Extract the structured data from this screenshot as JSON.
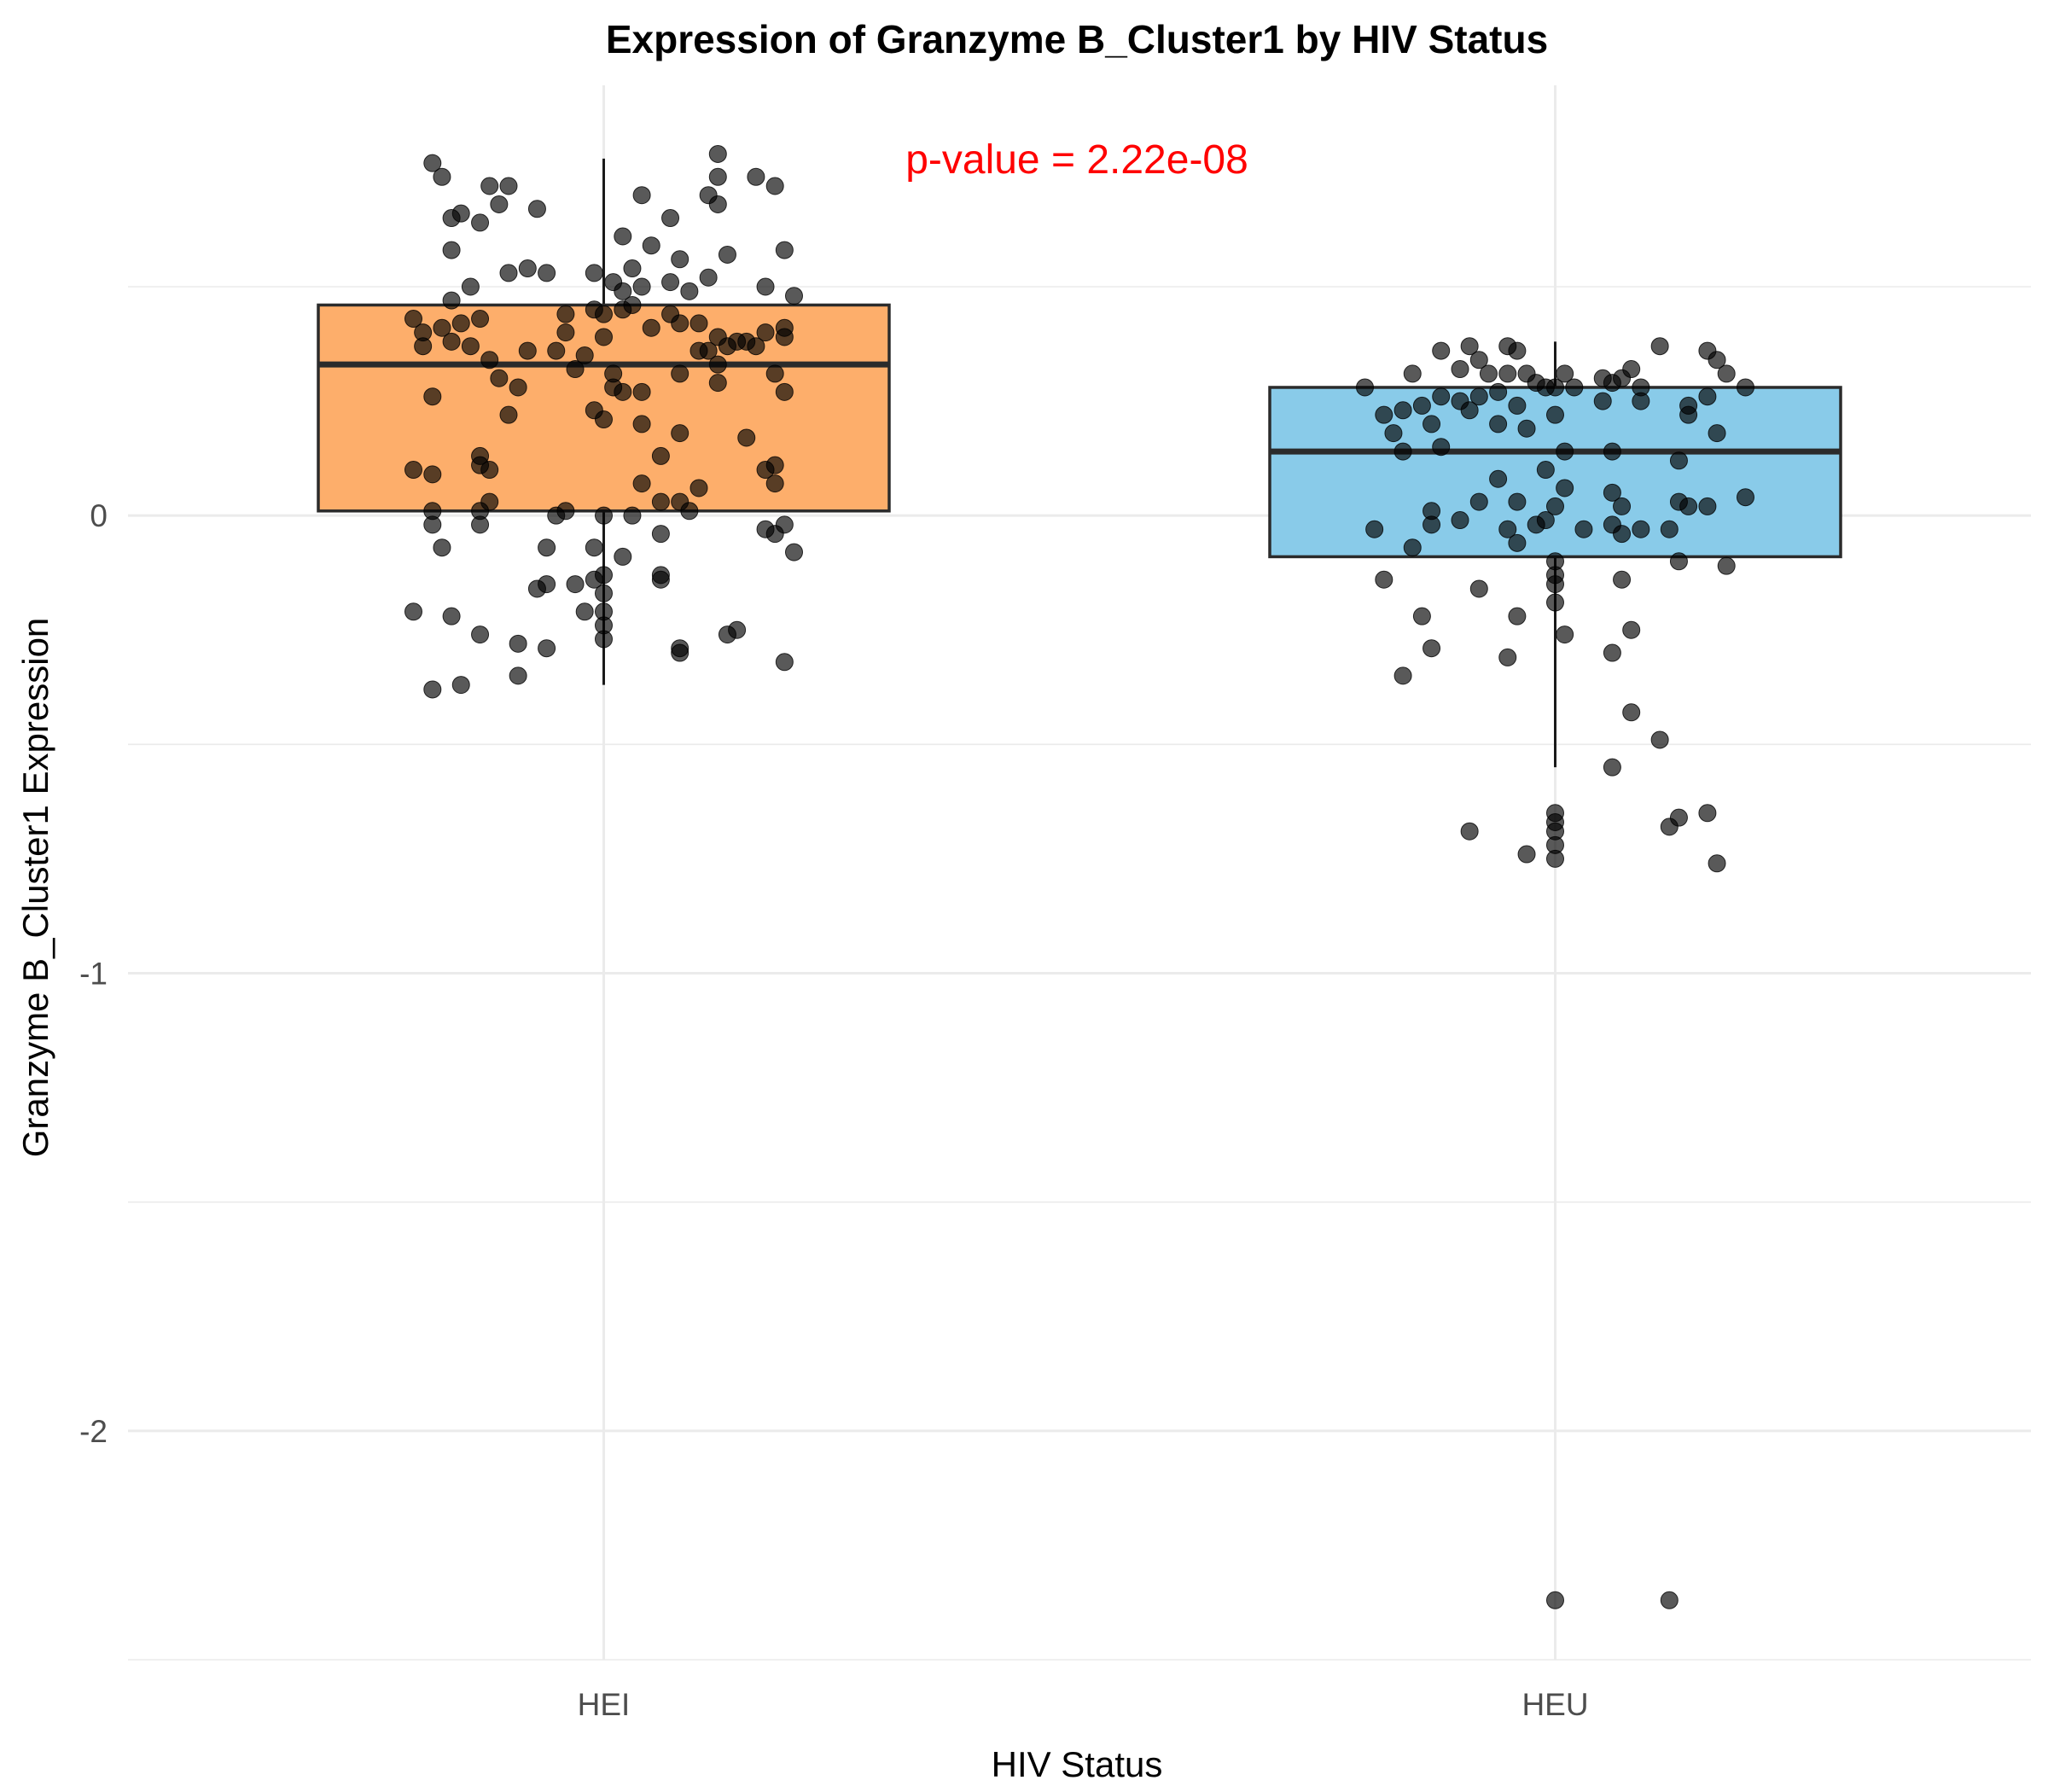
{
  "chart_data": {
    "type": "box",
    "title": "Expression of Granzyme B_Cluster1 by HIV Status",
    "xlabel": "HIV Status",
    "ylabel": "Granzyme B_Cluster1 Expression",
    "ylim": [
      -2.5,
      0.94
    ],
    "y_ticks": [
      0,
      -1,
      -2
    ],
    "y_tick_labels": [
      "0",
      "-1",
      "-2"
    ],
    "grid": true,
    "legend": "none",
    "categories": [
      "HEI",
      "HEU"
    ],
    "annotation": {
      "text": "p-value = 2.22e-08",
      "color": "#ff0000"
    },
    "point_color": "#000000",
    "groups": [
      {
        "name": "HEI",
        "color": "#fdae6b",
        "box": {
          "q1": 0.01,
          "median": 0.33,
          "q3": 0.46,
          "whisker_low": -0.37,
          "whisker_high": 0.78
        },
        "points": [
          {
            "x": -0.18,
            "y": 0.77
          },
          {
            "x": -0.17,
            "y": 0.74
          },
          {
            "x": -0.12,
            "y": 0.72
          },
          {
            "x": -0.1,
            "y": 0.72
          },
          {
            "x": -0.16,
            "y": 0.65
          },
          {
            "x": -0.15,
            "y": 0.66
          },
          {
            "x": -0.11,
            "y": 0.68
          },
          {
            "x": -0.07,
            "y": 0.67
          },
          {
            "x": -0.13,
            "y": 0.64
          },
          {
            "x": -0.16,
            "y": 0.58
          },
          {
            "x": -0.14,
            "y": 0.5
          },
          {
            "x": -0.1,
            "y": 0.53
          },
          {
            "x": -0.08,
            "y": 0.54
          },
          {
            "x": -0.06,
            "y": 0.53
          },
          {
            "x": -0.16,
            "y": 0.47
          },
          {
            "x": -0.2,
            "y": 0.43
          },
          {
            "x": -0.19,
            "y": 0.4
          },
          {
            "x": -0.17,
            "y": 0.41
          },
          {
            "x": -0.15,
            "y": 0.42
          },
          {
            "x": -0.13,
            "y": 0.43
          },
          {
            "x": -0.19,
            "y": 0.37
          },
          {
            "x": -0.16,
            "y": 0.38
          },
          {
            "x": -0.18,
            "y": 0.26
          },
          {
            "x": -0.14,
            "y": 0.37
          },
          {
            "x": -0.12,
            "y": 0.34
          },
          {
            "x": -0.11,
            "y": 0.3
          },
          {
            "x": -0.09,
            "y": 0.28
          },
          {
            "x": -0.08,
            "y": 0.36
          },
          {
            "x": -0.1,
            "y": 0.22
          },
          {
            "x": -0.04,
            "y": 0.44
          },
          {
            "x": -0.04,
            "y": 0.4
          },
          {
            "x": -0.05,
            "y": 0.36
          },
          {
            "x": -0.02,
            "y": 0.35
          },
          {
            "x": -0.01,
            "y": 0.45
          },
          {
            "x": -0.03,
            "y": 0.32
          },
          {
            "x": -0.2,
            "y": 0.1
          },
          {
            "x": -0.18,
            "y": 0.09
          },
          {
            "x": -0.13,
            "y": 0.13
          },
          {
            "x": -0.13,
            "y": 0.11
          },
          {
            "x": -0.12,
            "y": 0.1
          },
          {
            "x": -0.18,
            "y": 0.01
          },
          {
            "x": -0.13,
            "y": 0.01
          },
          {
            "x": -0.12,
            "y": 0.03
          },
          {
            "x": -0.04,
            "y": 0.01
          },
          {
            "x": -0.05,
            "y": 0.0
          },
          {
            "x": -0.18,
            "y": -0.02
          },
          {
            "x": -0.17,
            "y": -0.07
          },
          {
            "x": -0.13,
            "y": -0.02
          },
          {
            "x": -0.06,
            "y": -0.07
          },
          {
            "x": -0.06,
            "y": -0.15
          },
          {
            "x": -0.07,
            "y": -0.16
          },
          {
            "x": -0.03,
            "y": -0.15
          },
          {
            "x": -0.02,
            "y": -0.21
          },
          {
            "x": -0.2,
            "y": -0.21
          },
          {
            "x": -0.16,
            "y": -0.22
          },
          {
            "x": -0.13,
            "y": -0.26
          },
          {
            "x": -0.09,
            "y": -0.28
          },
          {
            "x": -0.06,
            "y": -0.29
          },
          {
            "x": -0.09,
            "y": -0.35
          },
          {
            "x": -0.15,
            "y": -0.37
          },
          {
            "x": -0.18,
            "y": -0.38
          },
          {
            "x": -0.01,
            "y": 0.53
          },
          {
            "x": 0.01,
            "y": 0.51
          },
          {
            "x": 0.02,
            "y": 0.49
          },
          {
            "x": 0.0,
            "y": 0.44
          },
          {
            "x": 0.02,
            "y": 0.45
          },
          {
            "x": 0.0,
            "y": 0.39
          },
          {
            "x": 0.03,
            "y": 0.46
          },
          {
            "x": 0.05,
            "y": 0.41
          },
          {
            "x": 0.07,
            "y": 0.44
          },
          {
            "x": 0.08,
            "y": 0.42
          },
          {
            "x": 0.1,
            "y": 0.42
          },
          {
            "x": 0.12,
            "y": 0.39
          },
          {
            "x": 0.13,
            "y": 0.37
          },
          {
            "x": 0.14,
            "y": 0.38
          },
          {
            "x": 0.11,
            "y": 0.36
          },
          {
            "x": 0.1,
            "y": 0.36
          },
          {
            "x": 0.08,
            "y": 0.31
          },
          {
            "x": 0.09,
            "y": 0.49
          },
          {
            "x": 0.11,
            "y": 0.52
          },
          {
            "x": 0.07,
            "y": 0.51
          },
          {
            "x": 0.04,
            "y": 0.5
          },
          {
            "x": 0.03,
            "y": 0.54
          },
          {
            "x": 0.01,
            "y": 0.31
          },
          {
            "x": 0.01,
            "y": 0.28
          },
          {
            "x": 0.02,
            "y": 0.27
          },
          {
            "x": 0.04,
            "y": 0.27
          },
          {
            "x": -0.01,
            "y": 0.23
          },
          {
            "x": 0.0,
            "y": 0.21
          },
          {
            "x": 0.04,
            "y": 0.2
          },
          {
            "x": 0.05,
            "y": 0.59
          },
          {
            "x": 0.02,
            "y": 0.61
          },
          {
            "x": 0.07,
            "y": 0.65
          },
          {
            "x": 0.04,
            "y": 0.7
          },
          {
            "x": 0.08,
            "y": 0.56
          },
          {
            "x": 0.13,
            "y": 0.57
          },
          {
            "x": 0.12,
            "y": 0.68
          },
          {
            "x": 0.11,
            "y": 0.7
          },
          {
            "x": 0.12,
            "y": 0.74
          },
          {
            "x": 0.12,
            "y": 0.79
          },
          {
            "x": 0.16,
            "y": 0.74
          },
          {
            "x": 0.18,
            "y": 0.72
          },
          {
            "x": 0.19,
            "y": 0.58
          },
          {
            "x": 0.17,
            "y": 0.5
          },
          {
            "x": 0.2,
            "y": 0.48
          },
          {
            "x": 0.15,
            "y": 0.38
          },
          {
            "x": 0.17,
            "y": 0.4
          },
          {
            "x": 0.19,
            "y": 0.41
          },
          {
            "x": 0.19,
            "y": 0.39
          },
          {
            "x": 0.16,
            "y": 0.37
          },
          {
            "x": 0.12,
            "y": 0.33
          },
          {
            "x": 0.12,
            "y": 0.29
          },
          {
            "x": 0.18,
            "y": 0.31
          },
          {
            "x": 0.19,
            "y": 0.27
          },
          {
            "x": 0.08,
            "y": 0.18
          },
          {
            "x": 0.06,
            "y": 0.13
          },
          {
            "x": 0.15,
            "y": 0.17
          },
          {
            "x": 0.04,
            "y": 0.07
          },
          {
            "x": 0.06,
            "y": 0.03
          },
          {
            "x": 0.08,
            "y": 0.03
          },
          {
            "x": 0.1,
            "y": 0.06
          },
          {
            "x": 0.17,
            "y": 0.1
          },
          {
            "x": 0.18,
            "y": 0.11
          },
          {
            "x": 0.18,
            "y": 0.07
          },
          {
            "x": 0.09,
            "y": 0.01
          },
          {
            "x": 0.0,
            "y": 0.0
          },
          {
            "x": 0.03,
            "y": 0.0
          },
          {
            "x": -0.01,
            "y": -0.07
          },
          {
            "x": -0.01,
            "y": -0.14
          },
          {
            "x": 0.02,
            "y": -0.09
          },
          {
            "x": 0.06,
            "y": -0.04
          },
          {
            "x": 0.06,
            "y": -0.13
          },
          {
            "x": 0.06,
            "y": -0.14
          },
          {
            "x": 0.0,
            "y": -0.13
          },
          {
            "x": 0.0,
            "y": -0.17
          },
          {
            "x": 0.0,
            "y": -0.21
          },
          {
            "x": 0.0,
            "y": -0.24
          },
          {
            "x": 0.0,
            "y": -0.27
          },
          {
            "x": 0.08,
            "y": -0.29
          },
          {
            "x": 0.08,
            "y": -0.3
          },
          {
            "x": 0.13,
            "y": -0.26
          },
          {
            "x": 0.14,
            "y": -0.25
          },
          {
            "x": 0.17,
            "y": -0.03
          },
          {
            "x": 0.18,
            "y": -0.04
          },
          {
            "x": 0.19,
            "y": -0.02
          },
          {
            "x": 0.2,
            "y": -0.08
          },
          {
            "x": 0.19,
            "y": -0.32
          }
        ]
      },
      {
        "name": "HEU",
        "color": "#89cbe9",
        "box": {
          "q1": -0.09,
          "median": 0.14,
          "q3": 0.28,
          "whisker_low": -0.55,
          "whisker_high": 0.38
        },
        "points": [
          {
            "x": -0.2,
            "y": 0.28
          },
          {
            "x": -0.15,
            "y": 0.31
          },
          {
            "x": -0.12,
            "y": 0.36
          },
          {
            "x": -0.09,
            "y": 0.37
          },
          {
            "x": -0.05,
            "y": 0.37
          },
          {
            "x": -0.04,
            "y": 0.36
          },
          {
            "x": -0.08,
            "y": 0.34
          },
          {
            "x": -0.1,
            "y": 0.32
          },
          {
            "x": -0.07,
            "y": 0.31
          },
          {
            "x": -0.05,
            "y": 0.31
          },
          {
            "x": -0.03,
            "y": 0.31
          },
          {
            "x": -0.02,
            "y": 0.29
          },
          {
            "x": -0.01,
            "y": 0.28
          },
          {
            "x": 0.0,
            "y": 0.28
          },
          {
            "x": 0.01,
            "y": 0.31
          },
          {
            "x": -0.18,
            "y": 0.22
          },
          {
            "x": -0.16,
            "y": 0.23
          },
          {
            "x": -0.14,
            "y": 0.24
          },
          {
            "x": -0.12,
            "y": 0.26
          },
          {
            "x": -0.1,
            "y": 0.25
          },
          {
            "x": -0.08,
            "y": 0.26
          },
          {
            "x": -0.06,
            "y": 0.27
          },
          {
            "x": -0.04,
            "y": 0.24
          },
          {
            "x": -0.03,
            "y": 0.19
          },
          {
            "x": -0.06,
            "y": 0.2
          },
          {
            "x": -0.09,
            "y": 0.23
          },
          {
            "x": -0.13,
            "y": 0.2
          },
          {
            "x": -0.17,
            "y": 0.18
          },
          {
            "x": -0.16,
            "y": 0.14
          },
          {
            "x": -0.12,
            "y": 0.15
          },
          {
            "x": 0.0,
            "y": 0.22
          },
          {
            "x": 0.02,
            "y": 0.28
          },
          {
            "x": 0.05,
            "y": 0.3
          },
          {
            "x": 0.07,
            "y": 0.3
          },
          {
            "x": 0.08,
            "y": 0.32
          },
          {
            "x": 0.06,
            "y": 0.29
          },
          {
            "x": 0.09,
            "y": 0.28
          },
          {
            "x": 0.11,
            "y": 0.37
          },
          {
            "x": 0.16,
            "y": 0.36
          },
          {
            "x": 0.17,
            "y": 0.34
          },
          {
            "x": 0.18,
            "y": 0.31
          },
          {
            "x": 0.2,
            "y": 0.28
          },
          {
            "x": 0.16,
            "y": 0.26
          },
          {
            "x": 0.14,
            "y": 0.24
          },
          {
            "x": 0.09,
            "y": 0.25
          },
          {
            "x": 0.05,
            "y": 0.25
          },
          {
            "x": 0.14,
            "y": 0.22
          },
          {
            "x": 0.17,
            "y": 0.18
          },
          {
            "x": 0.01,
            "y": 0.14
          },
          {
            "x": 0.06,
            "y": 0.14
          },
          {
            "x": 0.13,
            "y": 0.12
          },
          {
            "x": -0.01,
            "y": 0.1
          },
          {
            "x": -0.06,
            "y": 0.08
          },
          {
            "x": 0.01,
            "y": 0.06
          },
          {
            "x": 0.06,
            "y": 0.05
          },
          {
            "x": -0.04,
            "y": 0.03
          },
          {
            "x": -0.08,
            "y": 0.03
          },
          {
            "x": 0.0,
            "y": 0.02
          },
          {
            "x": 0.07,
            "y": 0.02
          },
          {
            "x": 0.13,
            "y": 0.03
          },
          {
            "x": 0.14,
            "y": 0.02
          },
          {
            "x": 0.16,
            "y": 0.02
          },
          {
            "x": 0.2,
            "y": 0.04
          },
          {
            "x": -0.13,
            "y": 0.01
          },
          {
            "x": -0.1,
            "y": -0.01
          },
          {
            "x": -0.13,
            "y": -0.02
          },
          {
            "x": -0.19,
            "y": -0.03
          },
          {
            "x": -0.05,
            "y": -0.03
          },
          {
            "x": -0.01,
            "y": -0.01
          },
          {
            "x": -0.02,
            "y": -0.02
          },
          {
            "x": 0.03,
            "y": -0.03
          },
          {
            "x": 0.06,
            "y": -0.02
          },
          {
            "x": 0.07,
            "y": -0.04
          },
          {
            "x": 0.09,
            "y": -0.03
          },
          {
            "x": 0.12,
            "y": -0.03
          },
          {
            "x": -0.15,
            "y": -0.07
          },
          {
            "x": -0.04,
            "y": -0.06
          },
          {
            "x": 0.0,
            "y": -0.1
          },
          {
            "x": 0.0,
            "y": -0.13
          },
          {
            "x": 0.13,
            "y": -0.1
          },
          {
            "x": 0.18,
            "y": -0.11
          },
          {
            "x": -0.18,
            "y": -0.14
          },
          {
            "x": -0.08,
            "y": -0.16
          },
          {
            "x": 0.0,
            "y": -0.15
          },
          {
            "x": 0.07,
            "y": -0.14
          },
          {
            "x": 0.0,
            "y": -0.19
          },
          {
            "x": -0.14,
            "y": -0.22
          },
          {
            "x": -0.04,
            "y": -0.22
          },
          {
            "x": 0.01,
            "y": -0.26
          },
          {
            "x": 0.08,
            "y": -0.25
          },
          {
            "x": -0.13,
            "y": -0.29
          },
          {
            "x": -0.05,
            "y": -0.31
          },
          {
            "x": 0.06,
            "y": -0.3
          },
          {
            "x": -0.16,
            "y": -0.35
          },
          {
            "x": 0.08,
            "y": -0.43
          },
          {
            "x": 0.11,
            "y": -0.49
          },
          {
            "x": 0.06,
            "y": -0.55
          },
          {
            "x": 0.0,
            "y": -0.65
          },
          {
            "x": 0.0,
            "y": -0.67
          },
          {
            "x": 0.0,
            "y": -0.69
          },
          {
            "x": 0.0,
            "y": -0.72
          },
          {
            "x": 0.0,
            "y": -0.75
          },
          {
            "x": -0.09,
            "y": -0.69
          },
          {
            "x": -0.03,
            "y": -0.74
          },
          {
            "x": 0.13,
            "y": -0.66
          },
          {
            "x": 0.12,
            "y": -0.68
          },
          {
            "x": 0.16,
            "y": -0.65
          },
          {
            "x": 0.17,
            "y": -0.76
          },
          {
            "x": 0.0,
            "y": -2.37
          },
          {
            "x": 0.12,
            "y": -2.37
          }
        ]
      }
    ]
  }
}
